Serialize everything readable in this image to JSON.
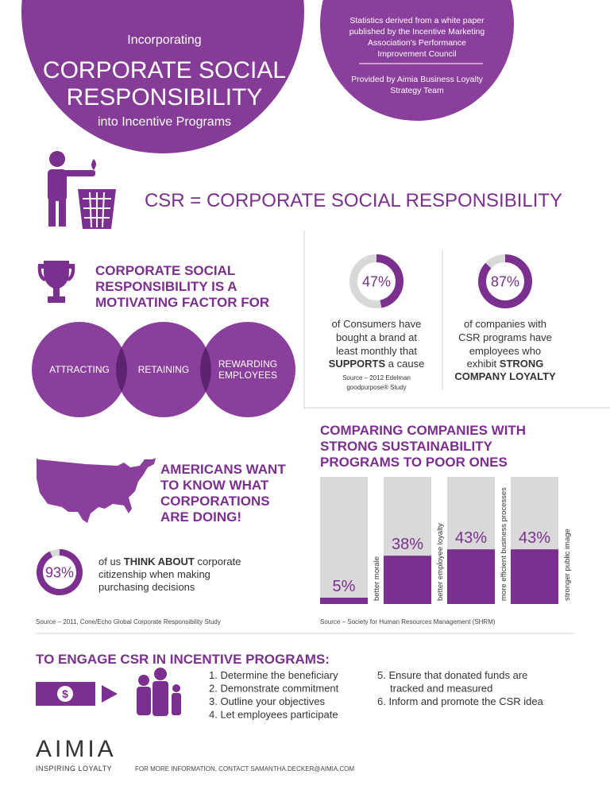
{
  "header": {
    "kicker": "Incorporating",
    "title_lines": [
      "CORPORATE SOCIAL",
      "RESPONSIBILITY"
    ],
    "subtitle": "into Incentive Programs",
    "note_lines": [
      "Statistics derived from a white paper",
      "published by the Incentive Marketing",
      "Association's Performance",
      "Improvement Council"
    ],
    "credit_lines": [
      "Provided by Aimia Business Loyalty",
      "Strategy Team"
    ]
  },
  "headline": "CSR = CORPORATE SOCIAL RESPONSIBILITY",
  "motivating": {
    "title_lines": [
      "CORPORATE SOCIAL",
      "RESPONSIBILITY IS A",
      "MOTIVATING FACTOR FOR"
    ],
    "circles": [
      [
        "ATTRACTING"
      ],
      [
        "RETAINING"
      ],
      [
        "REWARDING",
        "EMPLOYEES"
      ]
    ]
  },
  "stats": [
    {
      "value": 47,
      "value_label": "47%",
      "lines": [
        [
          "of Consumers have"
        ],
        [
          "bought a brand at"
        ],
        [
          "least monthly that"
        ],
        [
          "SUPPORTS",
          " a cause"
        ]
      ],
      "source_lines": [
        "Source – 2012 Edelman",
        "goodpurpose® Study"
      ]
    },
    {
      "value": 87,
      "value_label": "87%",
      "lines": [
        [
          "of companies with"
        ],
        [
          "CSR programs have"
        ],
        [
          "employees who"
        ],
        [
          "exhibit ",
          "STRONG"
        ],
        [
          "COMPANY LOYALTY"
        ]
      ]
    }
  ],
  "americans": {
    "title_lines": [
      "AMERICANS WANT",
      "TO KNOW WHAT",
      "CORPORATIONS",
      "ARE DOING!"
    ],
    "value": 93,
    "value_label": "93%",
    "lines": [
      [
        "of us ",
        "THINK ABOUT",
        " corporate"
      ],
      [
        "citizenship when making"
      ],
      [
        "purchasing decisions"
      ]
    ],
    "source": "Source – 2011, Cone/Echo Global Corporate Responsibility Study"
  },
  "chart_data": {
    "type": "bar",
    "title_lines": [
      "COMPARING COMPANIES WITH",
      "STRONG SUSTAINABILITY",
      "PROGRAMS TO POOR ONES"
    ],
    "categories": [
      "better morale",
      "better employee loyalty",
      "more efficient business processes",
      "stronger public image"
    ],
    "values": [
      5,
      38,
      43,
      43
    ],
    "value_labels": [
      "5%",
      "38%",
      "43%",
      "43%"
    ],
    "ylim": [
      0,
      100
    ],
    "color": "#7b2f8e",
    "source": "Source – Society for Human Resources Management (SHRM)"
  },
  "engage": {
    "title": "TO ENGAGE CSR IN INCENTIVE PROGRAMS:",
    "icon_symbol": "$",
    "steps_left": [
      [
        "1. Determine the beneficiary"
      ],
      [
        "2. Demonstrate commitment"
      ],
      [
        "3. Outline your objectives"
      ],
      [
        "4. Let employees participate"
      ]
    ],
    "steps_right": [
      [
        "5. Ensure that donated funds are",
        "tracked and measured"
      ],
      [
        "6. Inform and promote the CSR idea"
      ]
    ]
  },
  "footer": {
    "logo": "AIMIA",
    "tagline": "INSPIRING LOYALTY",
    "contact": "FOR MORE INFORMATION, CONTACT SAMANTHA.DECKER@AIMIA.COM"
  }
}
